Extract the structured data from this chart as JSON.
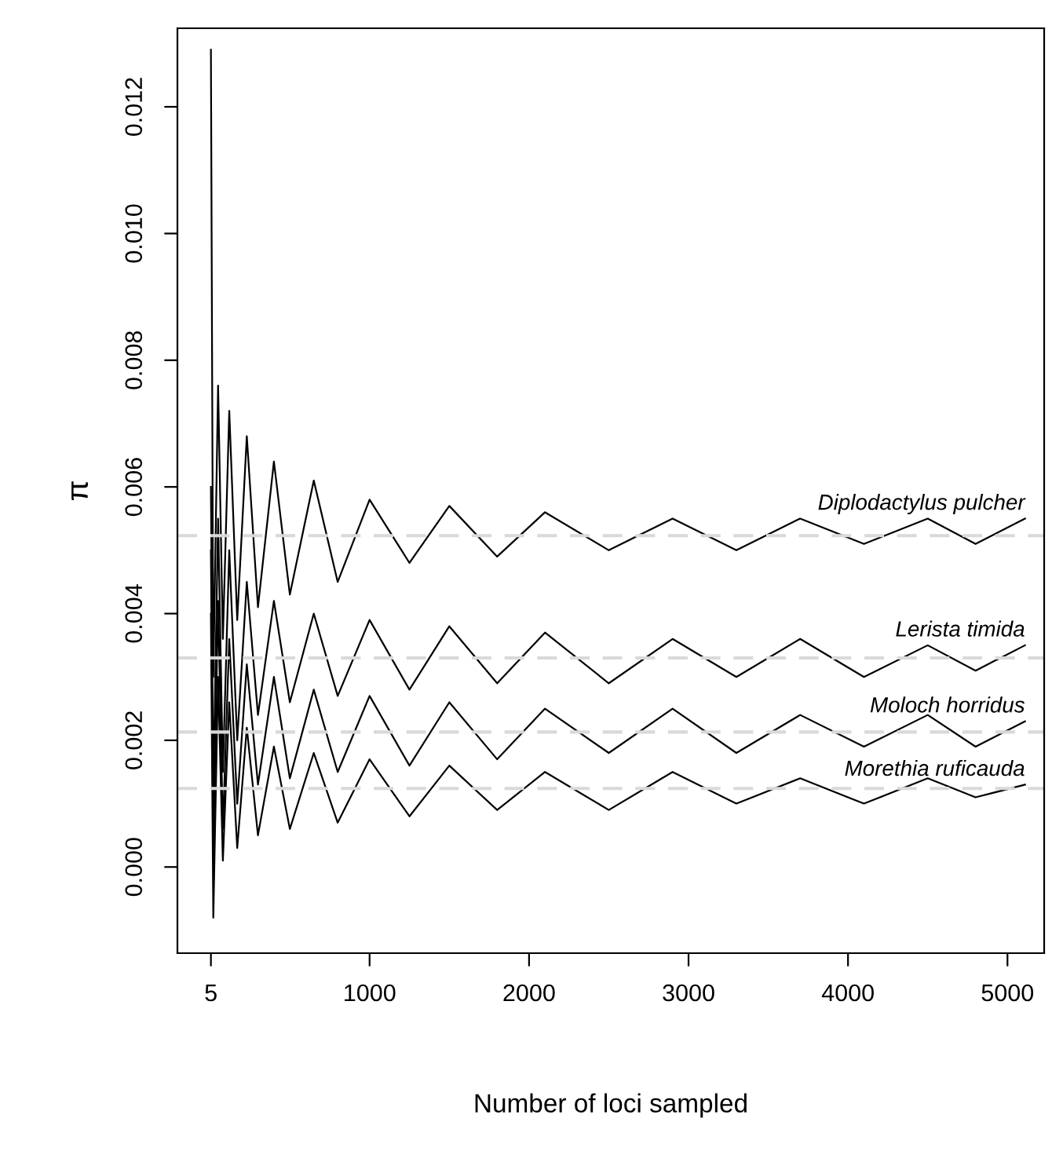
{
  "chart_data": {
    "type": "line",
    "xlabel": "Number of loci sampled",
    "ylabel": "π",
    "x": [
      5,
      20,
      50,
      80,
      120,
      170,
      230,
      300,
      400,
      500,
      650,
      800,
      1000,
      1250,
      1500,
      1800,
      2100,
      2500,
      2900,
      3300,
      3700,
      4100,
      4500,
      4800,
      5110
    ],
    "series": [
      {
        "name": "Diplodactylus pulcher",
        "color": "#000000",
        "values": [
          0.0129,
          0.003,
          0.0076,
          0.0036,
          0.0072,
          0.0039,
          0.0068,
          0.0041,
          0.0064,
          0.0043,
          0.0061,
          0.0045,
          0.0058,
          0.0048,
          0.0057,
          0.0049,
          0.0056,
          0.005,
          0.0055,
          0.005,
          0.0055,
          0.0051,
          0.0055,
          0.0051,
          0.0055
        ]
      },
      {
        "name": "Lerista timida",
        "color": "#000000",
        "values": [
          0.006,
          0.0012,
          0.0055,
          0.0015,
          0.005,
          0.002,
          0.0045,
          0.0024,
          0.0042,
          0.0026,
          0.004,
          0.0027,
          0.0039,
          0.0028,
          0.0038,
          0.0029,
          0.0037,
          0.0029,
          0.0036,
          0.003,
          0.0036,
          0.003,
          0.0035,
          0.0031,
          0.0035
        ]
      },
      {
        "name": "Moloch horridus",
        "color": "#000000",
        "values": [
          0.005,
          0.0002,
          0.0042,
          0.0006,
          0.0036,
          0.001,
          0.0032,
          0.0013,
          0.003,
          0.0014,
          0.0028,
          0.0015,
          0.0027,
          0.0016,
          0.0026,
          0.0017,
          0.0025,
          0.0018,
          0.0025,
          0.0018,
          0.0024,
          0.0019,
          0.0024,
          0.0019,
          0.0023
        ]
      },
      {
        "name": "Morethia ruficauda",
        "color": "#000000",
        "values": [
          0.004,
          -0.0008,
          0.003,
          0.0001,
          0.0026,
          0.0003,
          0.0022,
          0.0005,
          0.0019,
          0.0006,
          0.0018,
          0.0007,
          0.0017,
          0.0008,
          0.0016,
          0.0009,
          0.0015,
          0.0009,
          0.0015,
          0.001,
          0.0014,
          0.001,
          0.0014,
          0.0011,
          0.0013
        ]
      }
    ],
    "ref_lines": [
      {
        "axis": "y",
        "value": 0.00523,
        "color": "#d9d9d9",
        "line_style": "dashed"
      },
      {
        "axis": "y",
        "value": 0.0033,
        "color": "#d9d9d9",
        "line_style": "dashed"
      },
      {
        "axis": "y",
        "value": 0.00213,
        "color": "#d9d9d9",
        "line_style": "dashed"
      },
      {
        "axis": "y",
        "value": 0.00124,
        "color": "#d9d9d9",
        "line_style": "dashed"
      }
    ],
    "xlim": [
      -205,
      5230
    ],
    "ylim": [
      -0.00136,
      0.01324
    ],
    "xticks": [
      5,
      1000,
      2000,
      3000,
      4000,
      5000
    ],
    "yticks": [
      {
        "value": 0,
        "label": "0.000"
      },
      {
        "value": 0.002,
        "label": "0.002"
      },
      {
        "value": 0.004,
        "label": "0.004"
      },
      {
        "value": 0.006,
        "label": "0.006"
      },
      {
        "value": 0.008,
        "label": "0.008"
      },
      {
        "value": 0.01,
        "label": "0.010"
      },
      {
        "value": 0.012,
        "label": "0.012"
      }
    ],
    "grid": false,
    "legend": false,
    "marker": "none",
    "line_style": "solid"
  }
}
